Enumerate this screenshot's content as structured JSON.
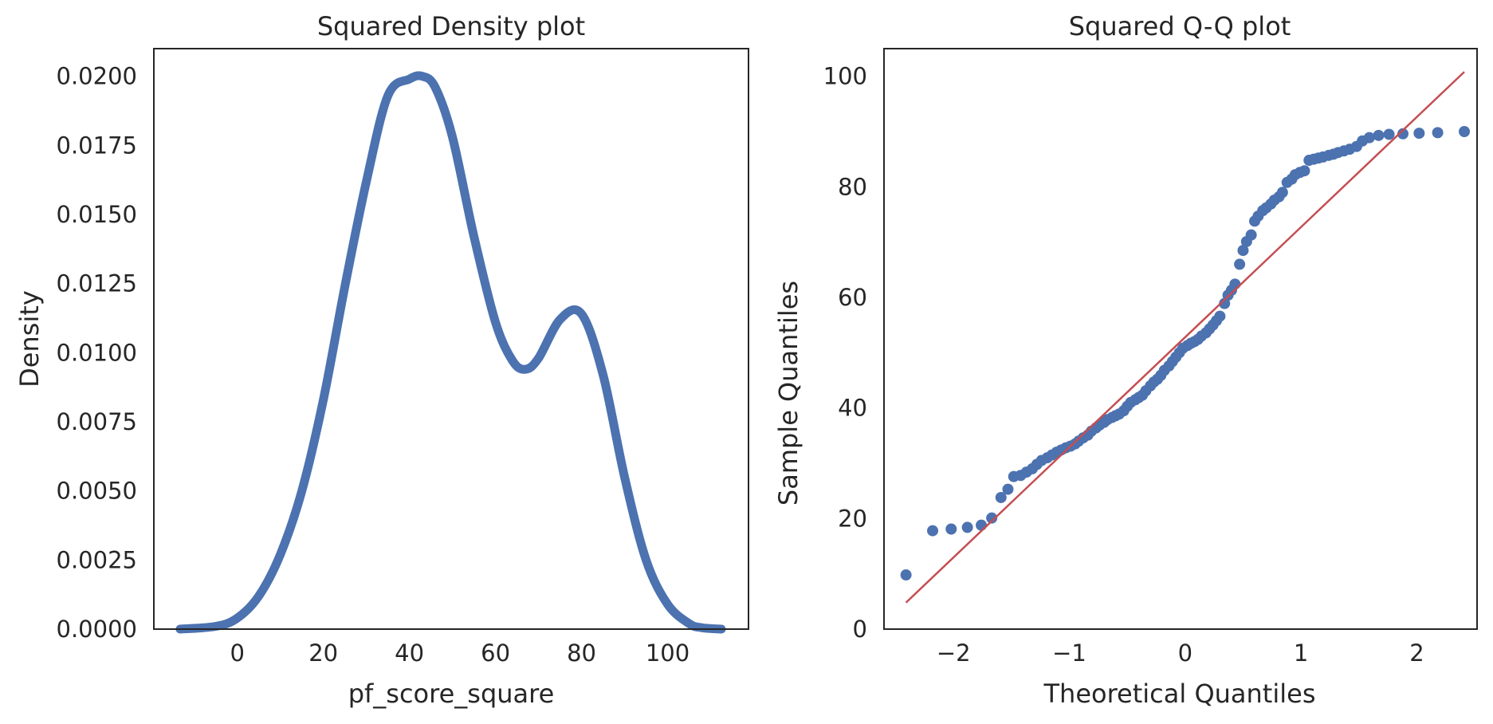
{
  "chart_data": [
    {
      "type": "line",
      "title": "Squared Density plot",
      "xlabel": "pf_score_square",
      "ylabel": "Density",
      "xlim": [
        -19.4,
        118.8
      ],
      "ylim": [
        0,
        0.021
      ],
      "xticks": [
        0,
        20,
        40,
        60,
        80,
        100
      ],
      "xtick_labels": [
        "0",
        "20",
        "40",
        "60",
        "80",
        "100"
      ],
      "yticks": [
        0,
        0.0025,
        0.005,
        0.0075,
        0.01,
        0.0125,
        0.015,
        0.0175,
        0.02
      ],
      "ytick_labels": [
        "0.0000",
        "0.0025",
        "0.0050",
        "0.0075",
        "0.0100",
        "0.0125",
        "0.0150",
        "0.0175",
        "0.0200"
      ],
      "grid": false,
      "series": [
        {
          "color": "#4c72b0",
          "x": [
            -13.3,
            -5,
            0,
            5,
            10,
            15,
            20,
            25,
            30,
            35,
            40,
            43,
            46,
            50,
            55,
            60,
            64,
            67,
            70,
            75,
            80,
            85,
            90,
            95,
            100,
            105,
            108,
            112.5
          ],
          "y": [
            0.0,
            0.0001,
            0.0004,
            0.0012,
            0.0027,
            0.005,
            0.0083,
            0.0124,
            0.0162,
            0.0193,
            0.0199,
            0.02,
            0.0196,
            0.0178,
            0.0142,
            0.0111,
            0.0097,
            0.0094,
            0.0098,
            0.0112,
            0.0114,
            0.0092,
            0.0055,
            0.0025,
            0.0009,
            0.0002,
            5e-05,
            0.0
          ]
        }
      ]
    },
    {
      "type": "scatter",
      "title": "Squared Q-Q plot",
      "xlabel": "Theoretical Quantiles",
      "ylabel": "Sample Quantiles",
      "xlim": [
        -2.6,
        2.52
      ],
      "ylim": [
        0,
        105
      ],
      "xticks": [
        -2,
        -1,
        0,
        1,
        2
      ],
      "xtick_labels": [
        "−2",
        "−1",
        "0",
        "1",
        "2"
      ],
      "yticks": [
        0,
        20,
        40,
        60,
        80,
        100
      ],
      "ytick_labels": [
        "0",
        "20",
        "40",
        "60",
        "80",
        "100"
      ],
      "grid": false,
      "series": [
        {
          "color": "#4c72b0",
          "x": [
            -2.41,
            -2.18,
            -2.02,
            -1.88,
            -1.76,
            -1.67,
            -1.59,
            -1.53,
            -1.48,
            -1.42,
            -1.37,
            -1.32,
            -1.28,
            -1.24,
            -1.19,
            -1.15,
            -1.11,
            -1.07,
            -1.03,
            -0.99,
            -0.95,
            -0.92,
            -0.88,
            -0.84,
            -0.81,
            -0.77,
            -0.74,
            -0.7,
            -0.67,
            -0.63,
            -0.6,
            -0.57,
            -0.53,
            -0.5,
            -0.47,
            -0.43,
            -0.4,
            -0.37,
            -0.34,
            -0.3,
            -0.27,
            -0.24,
            -0.21,
            -0.18,
            -0.14,
            -0.11,
            -0.08,
            -0.05,
            -0.02,
            0.02,
            0.05,
            0.08,
            0.11,
            0.14,
            0.18,
            0.21,
            0.24,
            0.27,
            0.3,
            0.34,
            0.37,
            0.4,
            0.43,
            0.47,
            0.5,
            0.53,
            0.57,
            0.6,
            0.63,
            0.67,
            0.7,
            0.74,
            0.77,
            0.81,
            0.84,
            0.88,
            0.92,
            0.95,
            0.99,
            1.03,
            1.07,
            1.11,
            1.15,
            1.19,
            1.24,
            1.28,
            1.32,
            1.37,
            1.42,
            1.48,
            1.53,
            1.59,
            1.67,
            1.76,
            1.88,
            2.02,
            2.18,
            2.41
          ],
          "y": [
            9.8,
            17.8,
            18.1,
            18.4,
            18.8,
            20.1,
            23.8,
            25.3,
            27.6,
            27.8,
            28.4,
            29.0,
            29.8,
            30.5,
            31.0,
            31.5,
            32.0,
            32.4,
            32.8,
            33.1,
            33.5,
            34.0,
            34.6,
            35.1,
            35.8,
            36.4,
            36.9,
            37.4,
            37.9,
            38.3,
            38.6,
            38.9,
            39.5,
            40.3,
            41.0,
            41.5,
            41.9,
            42.3,
            43.1,
            44.0,
            44.7,
            45.2,
            45.9,
            46.8,
            47.6,
            48.4,
            49.2,
            50.0,
            50.8,
            51.3,
            51.7,
            52.0,
            52.4,
            53.0,
            53.6,
            54.3,
            55.0,
            55.8,
            56.6,
            58.9,
            60.4,
            61.3,
            62.4,
            66.0,
            68.5,
            70.1,
            71.3,
            73.8,
            74.7,
            75.7,
            76.2,
            76.9,
            77.6,
            78.2,
            79.0,
            80.8,
            81.4,
            82.2,
            82.6,
            82.9,
            84.8,
            85.0,
            85.2,
            85.4,
            85.7,
            85.9,
            86.2,
            86.5,
            86.8,
            87.3,
            88.3,
            88.9,
            89.3,
            89.5,
            89.6,
            89.7,
            89.8,
            90.0
          ]
        },
        {
          "type": "line",
          "color": "#c44e52",
          "x": [
            -2.41,
            2.41
          ],
          "y": [
            4.8,
            100.8
          ]
        }
      ]
    }
  ]
}
